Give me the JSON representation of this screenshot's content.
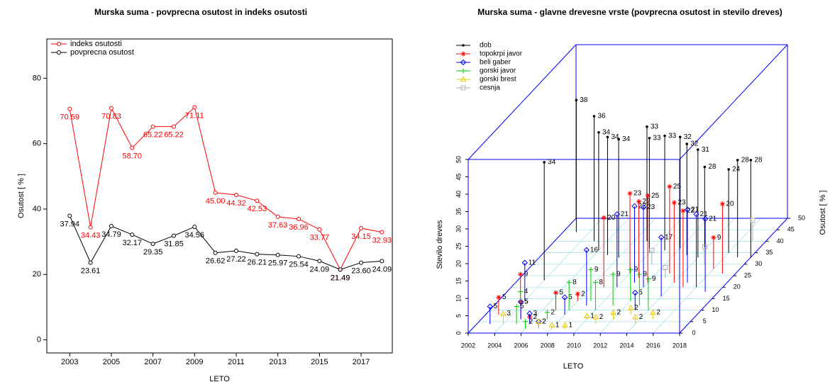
{
  "chart_data": [
    {
      "type": "line",
      "title": "Murska suma - povprecna osutost in indeks osutosti",
      "xlabel": "LETO",
      "ylabel": "Osutost [ % ]",
      "x": [
        2003,
        2004,
        2005,
        2006,
        2007,
        2008,
        2009,
        2010,
        2011,
        2012,
        2013,
        2014,
        2015,
        2016,
        2017,
        2018
      ],
      "series": [
        {
          "name": "indeks osutosti",
          "color": "#ff0000",
          "values": [
            70.59,
            34.43,
            70.83,
            58.7,
            65.22,
            65.22,
            71.11,
            45.0,
            44.32,
            42.53,
            37.63,
            36.96,
            33.77,
            21.49,
            34.15,
            32.93
          ],
          "value_labels": [
            "70.59",
            "34.43",
            "70.83",
            "58.70",
            "65.22",
            "65.22",
            "71.11",
            "45.00",
            "44.32",
            "42.53",
            "37.63",
            "36.96",
            "33.77",
            "21.49",
            "34.15",
            "32.93"
          ]
        },
        {
          "name": "povprecna osutost",
          "color": "#000000",
          "values": [
            37.94,
            23.61,
            34.79,
            32.17,
            29.35,
            31.85,
            34.56,
            26.62,
            27.22,
            26.21,
            25.97,
            25.54,
            24.09,
            21.49,
            23.6,
            24.09
          ],
          "value_labels": [
            "37.94",
            "23.61",
            "34.79",
            "32.17",
            "29.35",
            "31.85",
            "34.56",
            "26.62",
            "27.22",
            "26.21",
            "25.97",
            "25.54",
            "24.09",
            "21.49",
            "23.60",
            "24.09"
          ]
        }
      ],
      "xlim": [
        2001.9,
        2018.5
      ],
      "xticks": [
        2003,
        2005,
        2007,
        2009,
        2011,
        2013,
        2015,
        2017
      ],
      "ylim": [
        -4,
        92
      ],
      "yticks": [
        0,
        20,
        40,
        60,
        80
      ],
      "legend": "top-left"
    },
    {
      "type": "scatter3d",
      "title": "Murska suma - glavne drevesne vrste (povprecna osutost in stevilo dreves)",
      "xlabel": "LETO",
      "ylabel": "Osutost [ % ]",
      "zlabel": "Stevilo dreves",
      "series": [
        {
          "name": "dob",
          "color": "#000000",
          "marker": "dot",
          "x": [
            2003,
            2004,
            2005,
            2006,
            2007,
            2008,
            2009,
            2010,
            2011,
            2012,
            2013,
            2014,
            2015,
            2016,
            2017,
            2018
          ],
          "y": [
            44,
            23,
            40,
            36,
            34,
            33,
            40,
            35,
            36,
            37,
            34,
            33,
            30,
            35,
            33,
            33
          ],
          "z": [
            38,
            34,
            36,
            34,
            34,
            34,
            33,
            33,
            33,
            32,
            32,
            31,
            28,
            24,
            28,
            28
          ]
        },
        {
          "name": "topokrpi javor",
          "color": "#ff0000",
          "marker": "star",
          "x": [
            2003,
            2004,
            2005,
            2006,
            2007,
            2008,
            2009,
            2010,
            2011,
            2012,
            2013,
            2014,
            2015,
            2016,
            2017
          ],
          "y": [
            8,
            12,
            6,
            4,
            10,
            14,
            20,
            26,
            24,
            22,
            26,
            22,
            20,
            28,
            26
          ],
          "z": [
            5,
            9,
            5,
            2,
            5,
            2,
            20,
            23,
            22,
            25,
            25,
            23,
            22,
            9,
            20
          ]
        },
        {
          "name": "beli gaber",
          "color": "#0000ff",
          "marker": "diamond",
          "x": [
            2003,
            2004,
            2005,
            2006,
            2007,
            2008,
            2009,
            2010,
            2011,
            2012,
            2013,
            2014,
            2015,
            2016,
            2017
          ],
          "y": [
            4,
            14,
            6,
            4,
            2,
            8,
            12,
            20,
            22,
            20,
            10,
            16,
            22,
            20,
            18
          ],
          "z": [
            5,
            11,
            5,
            3,
            2,
            5,
            16,
            21,
            22,
            23,
            5,
            17,
            21,
            21,
            21
          ]
        },
        {
          "name": "gorski javor",
          "color": "#00cc00",
          "marker": "plus",
          "x": [
            2004,
            2005,
            2006,
            2007,
            2008,
            2009,
            2010,
            2011,
            2012,
            2013,
            2014
          ],
          "y": [
            12,
            4,
            2,
            6,
            10,
            14,
            10,
            12,
            14,
            12,
            10
          ],
          "z": [
            4,
            5,
            2,
            2,
            8,
            9,
            8,
            9,
            9,
            9,
            9
          ]
        },
        {
          "name": "gorski brest",
          "color": "#e6c800",
          "marker": "triangle",
          "x": [
            2004,
            2007,
            2008,
            2009,
            2010,
            2011,
            2012,
            2013,
            2014,
            2015
          ],
          "y": [
            4,
            2,
            2,
            2,
            6,
            4,
            6,
            8,
            4,
            6
          ],
          "z": [
            3,
            2,
            1,
            1,
            1,
            2,
            2,
            2,
            2,
            2
          ]
        },
        {
          "name": "cesnja",
          "color": "#b0b0b0",
          "marker": "square",
          "x": [
            2011,
            2013,
            2015,
            2017
          ],
          "y": [
            30,
            24,
            30,
            40
          ],
          "z": [
            4,
            3,
            5,
            6
          ]
        }
      ],
      "xlim": [
        2002,
        2018
      ],
      "xticks": [
        2002,
        2004,
        2006,
        2008,
        2010,
        2012,
        2014,
        2016,
        2018
      ],
      "ylim": [
        0,
        50
      ],
      "yticks": [
        0,
        5,
        10,
        15,
        20,
        25,
        30,
        35,
        40,
        45,
        50
      ],
      "zlim": [
        0,
        50
      ],
      "zticks": [
        0,
        5,
        10,
        15,
        20,
        25,
        30,
        35,
        40,
        45,
        50
      ],
      "legend": "top-left"
    }
  ]
}
